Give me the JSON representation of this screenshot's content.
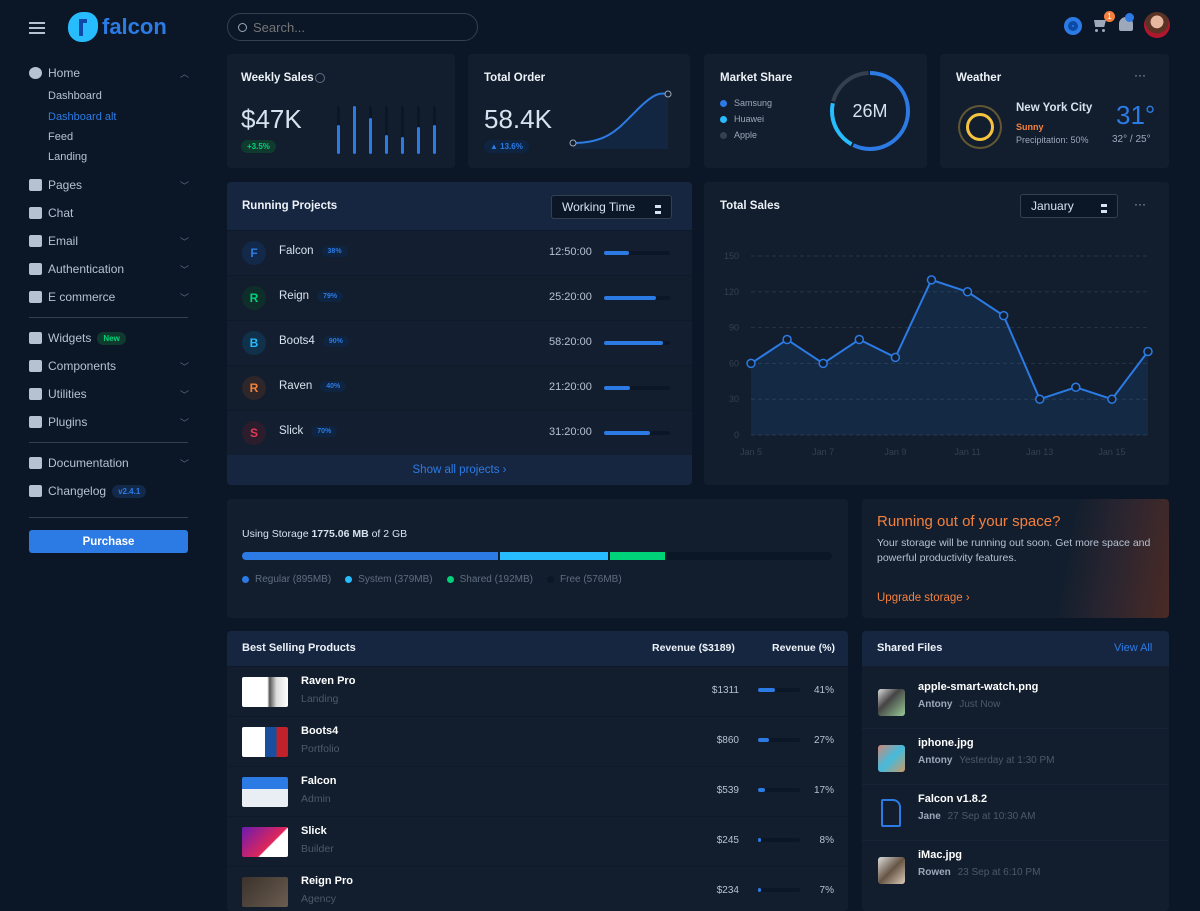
{
  "brand": {
    "name": "falcon"
  },
  "search": {
    "placeholder": "Search..."
  },
  "topbar": {
    "cart_count": "1",
    "icons": [
      "gear-icon",
      "cart-icon",
      "bell-icon",
      "avatar"
    ]
  },
  "sidebar": {
    "home": {
      "label": "Home",
      "children": [
        "Dashboard",
        "Dashboard alt",
        "Feed",
        "Landing"
      ],
      "active_child": "Dashboard alt"
    },
    "items": [
      {
        "label": "Pages",
        "icon": "pages-icon",
        "chevron": true
      },
      {
        "label": "Chat",
        "icon": "chat-icon",
        "chevron": false
      },
      {
        "label": "Email",
        "icon": "email-icon",
        "chevron": true
      },
      {
        "label": "Authentication",
        "icon": "lock-icon",
        "chevron": true
      },
      {
        "label": "E commerce",
        "icon": "cart-icon",
        "chevron": true
      },
      {
        "label": "Widgets",
        "icon": "widgets-icon",
        "badge": "New"
      },
      {
        "label": "Components",
        "icon": "puzzle-icon",
        "chevron": true
      },
      {
        "label": "Utilities",
        "icon": "fire-icon",
        "chevron": true
      },
      {
        "label": "Plugins",
        "icon": "plug-icon",
        "chevron": true
      },
      {
        "label": "Documentation",
        "icon": "book-icon",
        "chevron": true
      },
      {
        "label": "Changelog",
        "icon": "git-branch-icon",
        "badge": "v2.4.1"
      }
    ],
    "purchase": "Purchase"
  },
  "weekly_sales": {
    "title": "Weekly Sales",
    "value": "$47K",
    "change": "+3.5%",
    "bars": [
      60,
      100,
      76,
      40,
      35,
      56,
      60
    ]
  },
  "total_order": {
    "title": "Total Order",
    "value": "58.4K",
    "change": "▲ 13.6%"
  },
  "market_share": {
    "title": "Market Share",
    "total": "26M",
    "legend": [
      {
        "name": "Samsung",
        "color": "#2c7be5",
        "share": 58
      },
      {
        "name": "Huawei",
        "color": "#27bcfd",
        "share": 21
      },
      {
        "name": "Apple",
        "color": "#344050",
        "share": 21
      }
    ]
  },
  "weather": {
    "title": "Weather",
    "city": "New York City",
    "condition": "Sunny",
    "precipitation": "Precipitation: 50%",
    "temp": "31°",
    "range": "32° / 25°"
  },
  "running_projects": {
    "title": "Running Projects",
    "select": "Working Time",
    "footer": "Show all projects ›",
    "rows": [
      {
        "initial": "F",
        "name": "Falcon",
        "pct": "38%",
        "progress": 38,
        "time": "12:50:00",
        "color": "#2c7be5",
        "bg": "#13294a"
      },
      {
        "initial": "R",
        "name": "Reign",
        "pct": "79%",
        "progress": 79,
        "time": "25:20:00",
        "color": "#00d27a",
        "bg": "#0f2e2a"
      },
      {
        "initial": "B",
        "name": "Boots4",
        "pct": "90%",
        "progress": 90,
        "time": "58:20:00",
        "color": "#27bcfd",
        "bg": "#11304a"
      },
      {
        "initial": "R",
        "name": "Raven",
        "pct": "40%",
        "progress": 40,
        "time": "21:20:00",
        "color": "#f5803e",
        "bg": "#2e2629"
      },
      {
        "initial": "S",
        "name": "Slick",
        "pct": "70%",
        "progress": 70,
        "time": "31:20:00",
        "color": "#e63757",
        "bg": "#2c1d2c"
      }
    ]
  },
  "chart_data": {
    "type": "line",
    "title": "Total Sales",
    "select": "January",
    "categories": [
      "Jan 5",
      "Jan 6",
      "Jan 7",
      "Jan 8",
      "Jan 9",
      "Jan 10",
      "Jan 11",
      "Jan 12",
      "Jan 13",
      "Jan 14",
      "Jan 15",
      "Jan 16"
    ],
    "x_tick_labels": [
      "Jan 5",
      "Jan 7",
      "Jan 9",
      "Jan 11",
      "Jan 13",
      "Jan 15"
    ],
    "values": [
      60,
      80,
      60,
      80,
      65,
      130,
      120,
      100,
      30,
      40,
      30,
      70
    ],
    "yticks": [
      0,
      30,
      60,
      90,
      120,
      150
    ],
    "ylim": [
      0,
      150
    ],
    "grid": true,
    "color": "#2c7be5"
  },
  "storage": {
    "prefix": "Using Storage ",
    "used": "1775.06 MB",
    "suffix": " of 2 GB",
    "segments": [
      {
        "label": "Regular (895MB)",
        "mb": 895,
        "color": "#2c7be5"
      },
      {
        "label": "System (379MB)",
        "mb": 379,
        "color": "#27bcfd"
      },
      {
        "label": "Shared (192MB)",
        "mb": 192,
        "color": "#00d27a"
      },
      {
        "label": "Free (576MB)",
        "mb": 576,
        "color": "#0b1727"
      }
    ]
  },
  "promo": {
    "title": "Running out of your space?",
    "text": "Your storage will be running out soon. Get more space and powerful productivity features.",
    "link": "Upgrade storage ›"
  },
  "products": {
    "title": "Best Selling Products",
    "col1": "Revenue ($3189)",
    "col2": "Revenue (%)",
    "rows": [
      {
        "name": "Raven Pro",
        "category": "Landing",
        "revenue": "$1311",
        "pct": "41%",
        "progress": 41
      },
      {
        "name": "Boots4",
        "category": "Portfolio",
        "revenue": "$860",
        "pct": "27%",
        "progress": 27
      },
      {
        "name": "Falcon",
        "category": "Admin",
        "revenue": "$539",
        "pct": "17%",
        "progress": 17
      },
      {
        "name": "Slick",
        "category": "Builder",
        "revenue": "$245",
        "pct": "8%",
        "progress": 8
      },
      {
        "name": "Reign Pro",
        "category": "Agency",
        "revenue": "$234",
        "pct": "7%",
        "progress": 7
      }
    ]
  },
  "shared_files": {
    "title": "Shared Files",
    "view_all": "View All",
    "rows": [
      {
        "name": "apple-smart-watch.png",
        "user": "Antony",
        "time": "Just Now"
      },
      {
        "name": "iphone.jpg",
        "user": "Antony",
        "time": "Yesterday at 1:30 PM"
      },
      {
        "name": "Falcon v1.8.2",
        "user": "Jane",
        "time": "27 Sep at 10:30 AM"
      },
      {
        "name": "iMac.jpg",
        "user": "Rowen",
        "time": "23 Sep at 6:10 PM"
      }
    ]
  }
}
